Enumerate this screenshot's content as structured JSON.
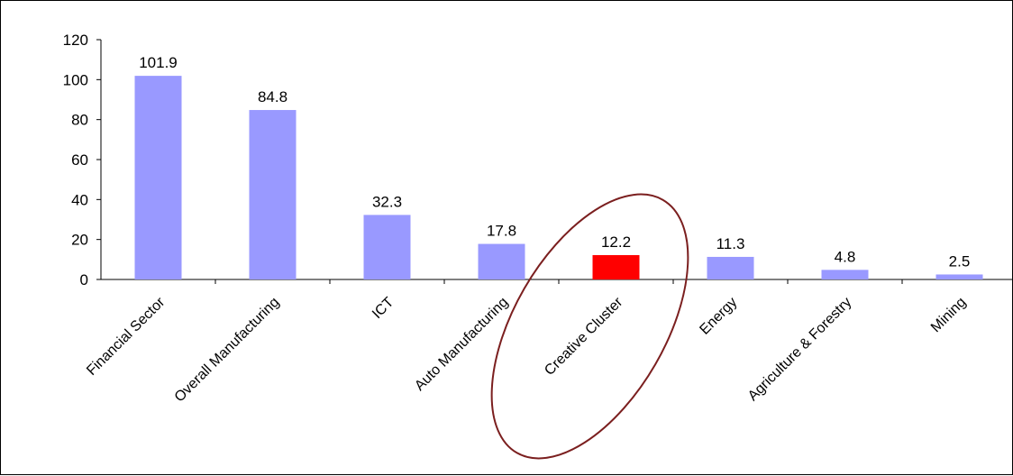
{
  "chart_data": {
    "type": "bar",
    "categories": [
      "Financial Sector",
      "Overall Manufacturing",
      "ICT",
      "Auto Manufacturing",
      "Creative Cluster",
      "Energy",
      "Agriculture & Forestry",
      "Mining"
    ],
    "values": [
      101.9,
      84.8,
      32.3,
      17.8,
      12.2,
      11.3,
      4.8,
      2.5
    ],
    "value_labels": [
      "101.9",
      "84.8",
      "32.3",
      "17.8",
      "12.2",
      "11.3",
      "4.8",
      "2.5"
    ],
    "y_ticks": [
      "0",
      "20",
      "40",
      "60",
      "80",
      "100",
      "120"
    ],
    "ylim": [
      0,
      120
    ],
    "title": "",
    "xlabel": "",
    "ylabel": "",
    "grid": false,
    "bar_color": "#9999ff",
    "highlight_color": "#ff0000",
    "highlight_index": 4,
    "annotation": {
      "type": "ellipse",
      "target": "Creative Cluster",
      "color": "#7b1f1f"
    }
  }
}
